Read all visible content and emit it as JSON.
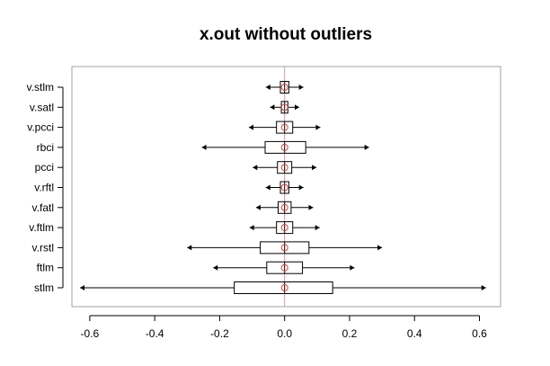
{
  "chart_data": {
    "type": "boxplot",
    "orientation": "horizontal",
    "title": "x.out without outliers",
    "xlabel": "",
    "ylabel": "",
    "xlim": [
      -0.655,
      0.665
    ],
    "x_ticks": [
      -0.6,
      -0.4,
      -0.2,
      0.0,
      0.2,
      0.4,
      0.6
    ],
    "x_tick_labels": [
      "-0.6",
      "-0.4",
      "-0.2",
      "0.0",
      "0.2",
      "0.4",
      "0.6"
    ],
    "reference_line": 0.0,
    "grid": false,
    "colors": {
      "box": "#000000",
      "reference_line": "#c8a0a0",
      "mean_marker": "#d94040",
      "whisker_end": "#000000"
    },
    "categories": [
      "v.stlm",
      "v.satl",
      "v.pcci",
      "rbci",
      "pcci",
      "v.rftl",
      "v.fatl",
      "v.ftlm",
      "v.rstl",
      "ftlm",
      "stlm"
    ],
    "boxes": [
      {
        "label": "v.stlm",
        "whisker_low": -0.058,
        "q1": -0.013,
        "median": 0.0,
        "q3": 0.013,
        "whisker_high": 0.058,
        "mean": 0.0
      },
      {
        "label": "v.satl",
        "whisker_low": -0.045,
        "q1": -0.01,
        "median": 0.0,
        "q3": 0.01,
        "whisker_high": 0.045,
        "mean": 0.0
      },
      {
        "label": "v.pcci",
        "whisker_low": -0.11,
        "q1": -0.025,
        "median": 0.0,
        "q3": 0.025,
        "whisker_high": 0.11,
        "mean": 0.0
      },
      {
        "label": "rbci",
        "whisker_low": -0.255,
        "q1": -0.06,
        "median": 0.0,
        "q3": 0.065,
        "whisker_high": 0.26,
        "mean": 0.0
      },
      {
        "label": "pcci",
        "whisker_low": -0.098,
        "q1": -0.022,
        "median": 0.0,
        "q3": 0.022,
        "whisker_high": 0.098,
        "mean": 0.0
      },
      {
        "label": "v.rftl",
        "whisker_low": -0.058,
        "q1": -0.013,
        "median": 0.0,
        "q3": 0.013,
        "whisker_high": 0.058,
        "mean": 0.0
      },
      {
        "label": "v.fatl",
        "whisker_low": -0.088,
        "q1": -0.02,
        "median": 0.0,
        "q3": 0.02,
        "whisker_high": 0.088,
        "mean": 0.0
      },
      {
        "label": "v.ftlm",
        "whisker_low": -0.108,
        "q1": -0.025,
        "median": 0.0,
        "q3": 0.025,
        "whisker_high": 0.108,
        "mean": 0.0
      },
      {
        "label": "v.rstl",
        "whisker_low": -0.3,
        "q1": -0.075,
        "median": 0.0,
        "q3": 0.075,
        "whisker_high": 0.3,
        "mean": 0.0
      },
      {
        "label": "ftlm",
        "whisker_low": -0.22,
        "q1": -0.055,
        "median": 0.0,
        "q3": 0.055,
        "whisker_high": 0.215,
        "mean": 0.0
      },
      {
        "label": "stlm",
        "whisker_low": -0.63,
        "q1": -0.155,
        "median": 0.0,
        "q3": 0.148,
        "whisker_high": 0.62,
        "mean": 0.0
      }
    ]
  }
}
